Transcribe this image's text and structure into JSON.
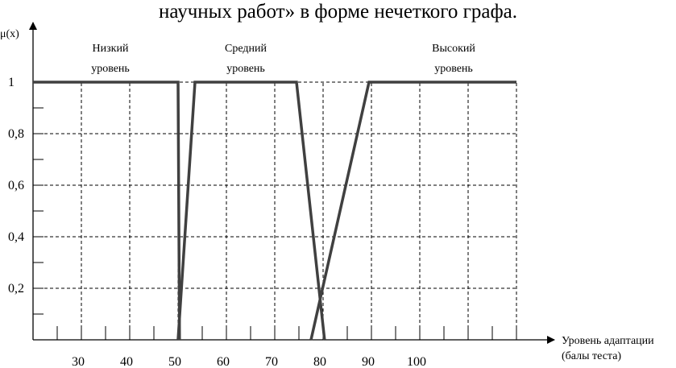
{
  "page": {
    "title": "научных работ» в форме нечеткого графа."
  },
  "chart_data": {
    "type": "line",
    "title": "научных работ» в форме нечеткого графа.",
    "ylabel": "μ(x)",
    "xlabel_line1": "Уровень адаптации",
    "xlabel_line2": "(балы теста)",
    "xlim": [
      20,
      120
    ],
    "ylim": [
      0,
      1
    ],
    "x_tick_labels": [
      {
        "value": 30,
        "label": "30"
      },
      {
        "value": 40,
        "label": "40"
      },
      {
        "value": 50,
        "label": "50"
      },
      {
        "value": 60,
        "label": "60"
      },
      {
        "value": 70,
        "label": "70"
      },
      {
        "value": 80,
        "label": "80"
      },
      {
        "value": 90,
        "label": "90"
      },
      {
        "value": 100,
        "label": "100"
      }
    ],
    "y_tick_labels": [
      {
        "value": 1.0,
        "label": "1"
      },
      {
        "value": 0.8,
        "label": "0,8"
      },
      {
        "value": 0.6,
        "label": "0,6"
      },
      {
        "value": 0.4,
        "label": "0,4"
      },
      {
        "value": 0.2,
        "label": "0,2"
      }
    ],
    "series": [
      {
        "name": "Низкий уровень",
        "label_line1": "Низкий",
        "label_line2": "уровень",
        "center_x": 36,
        "points": [
          [
            20,
            1
          ],
          [
            50,
            1
          ],
          [
            50.3,
            0
          ]
        ]
      },
      {
        "name": "Средний уровень",
        "label_line1": "Средний",
        "label_line2": "уровень",
        "center_x": 64,
        "points": [
          [
            50,
            0
          ],
          [
            53.5,
            1
          ],
          [
            74.5,
            1
          ],
          [
            80.3,
            0
          ]
        ]
      },
      {
        "name": "Высокий уровень",
        "label_line1": "Высокий",
        "label_line2": "уровень",
        "center_x": 107,
        "points": [
          [
            77.5,
            0
          ],
          [
            89.5,
            1
          ],
          [
            120,
            1
          ]
        ]
      }
    ],
    "grid": true,
    "line_color": "#404040"
  }
}
